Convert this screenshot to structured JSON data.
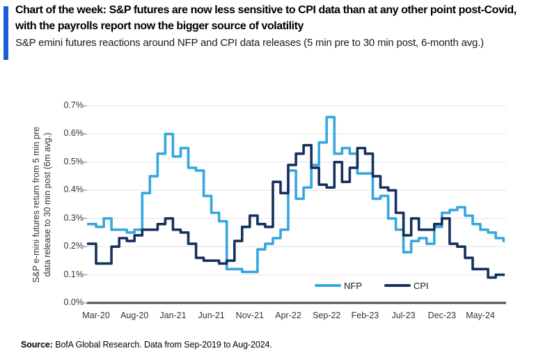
{
  "header": {
    "title": "Chart of the week: S&P futures are now less sensitive to CPI data than at any other point post-Covid, with the payrolls report now the bigger source of volatility",
    "subtitle": "S&P emini futures reactions around NFP and CPI data releases (5 min pre to 30 min post, 6-month avg.)",
    "accent_color": "#1C5ED6"
  },
  "chart_data": {
    "type": "line",
    "step_interpolation": true,
    "ylabel_line1": "S&P e-mini futures return from 5 min pre",
    "ylabel_line2": "data release to 30 min post (6m avg.)",
    "ylim": [
      0.0,
      0.7
    ],
    "yticks": [
      "0.0%",
      "0.1%",
      "0.2%",
      "0.3%",
      "0.4%",
      "0.5%",
      "0.6%",
      "0.7%"
    ],
    "xticks": [
      "Mar-20",
      "Aug-20",
      "Jan-21",
      "Jun-21",
      "Nov-21",
      "Apr-22",
      "Sep-22",
      "Feb-23",
      "Jul-23",
      "Dec-23",
      "May-24"
    ],
    "grid": "horizontal",
    "legend_position": "inside-bottom",
    "x": [
      "Feb-20",
      "Mar-20",
      "Apr-20",
      "May-20",
      "Jun-20",
      "Jul-20",
      "Aug-20",
      "Sep-20",
      "Oct-20",
      "Nov-20",
      "Dec-20",
      "Jan-21",
      "Feb-21",
      "Mar-21",
      "Apr-21",
      "May-21",
      "Jun-21",
      "Jul-21",
      "Aug-21",
      "Sep-21",
      "Oct-21",
      "Nov-21",
      "Dec-21",
      "Jan-22",
      "Feb-22",
      "Mar-22",
      "Apr-22",
      "May-22",
      "Jun-22",
      "Jul-22",
      "Aug-22",
      "Sep-22",
      "Oct-22",
      "Nov-22",
      "Dec-22",
      "Jan-23",
      "Feb-23",
      "Mar-23",
      "Apr-23",
      "May-23",
      "Jun-23",
      "Jul-23",
      "Aug-23",
      "Sep-23",
      "Oct-23",
      "Nov-23",
      "Dec-23",
      "Jan-24",
      "Feb-24",
      "Mar-24",
      "Apr-24",
      "May-24",
      "Jun-24",
      "Jul-24",
      "Aug-24"
    ],
    "series": [
      {
        "name": "NFP",
        "color": "#35A7DE",
        "values": [
          0.28,
          0.27,
          0.3,
          0.26,
          0.26,
          0.25,
          0.26,
          0.39,
          0.45,
          0.53,
          0.6,
          0.52,
          0.55,
          0.48,
          0.47,
          0.38,
          0.32,
          0.29,
          0.12,
          0.12,
          0.11,
          0.11,
          0.19,
          0.21,
          0.23,
          0.26,
          0.47,
          0.37,
          0.41,
          0.49,
          0.57,
          0.66,
          0.53,
          0.55,
          0.53,
          0.46,
          0.46,
          0.37,
          0.38,
          0.3,
          0.26,
          0.18,
          0.22,
          0.23,
          0.21,
          0.27,
          0.32,
          0.33,
          0.34,
          0.31,
          0.28,
          0.26,
          0.25,
          0.23,
          0.22
        ]
      },
      {
        "name": "CPI",
        "color": "#16305C",
        "values": [
          0.21,
          0.14,
          0.14,
          0.2,
          0.23,
          0.22,
          0.24,
          0.26,
          0.26,
          0.28,
          0.3,
          0.26,
          0.25,
          0.21,
          0.16,
          0.15,
          0.15,
          0.14,
          0.15,
          0.22,
          0.27,
          0.31,
          0.28,
          0.27,
          0.43,
          0.39,
          0.49,
          0.53,
          0.56,
          0.48,
          0.42,
          0.41,
          0.5,
          0.43,
          0.48,
          0.55,
          0.53,
          0.45,
          0.41,
          0.4,
          0.32,
          0.24,
          0.3,
          0.26,
          0.26,
          0.28,
          0.3,
          0.21,
          0.2,
          0.16,
          0.12,
          0.12,
          0.09,
          0.1,
          0.1
        ]
      }
    ],
    "gridline_color": "#E2E2E2",
    "axis_color": "#4D4D4D",
    "tick_color": "#7F7F7F"
  },
  "source": {
    "label": "Source:",
    "text": " BofA Global Research. Data from Sep-2019 to Aug-2024."
  }
}
